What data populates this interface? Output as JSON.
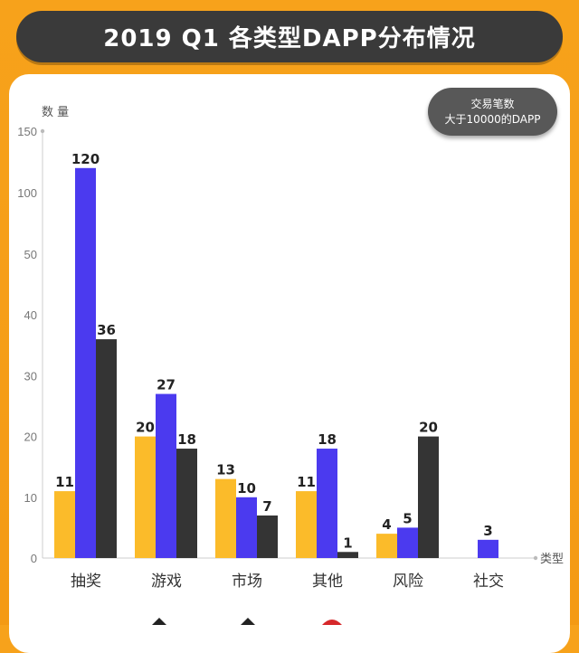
{
  "header": {
    "title": "2019 Q1 各类型DAPP分布情况"
  },
  "badge": {
    "line1": "交易笔数",
    "line2": "大于10000的DAPP"
  },
  "colors": {
    "background": "#f7a21b",
    "yellow": "#fbbb2a",
    "blue": "#4b3aef",
    "dark": "#343434",
    "axis": "#cccccc"
  },
  "chart_data": {
    "type": "bar",
    "ylabel": "数 量",
    "xlabel": "类型",
    "categories": [
      "抽奖",
      "游戏",
      "市场",
      "其他",
      "风险",
      "社交"
    ],
    "y_ticks": [
      "0",
      "10",
      "20",
      "30",
      "40",
      "50",
      "100",
      "150"
    ],
    "y_scale": "piecewise: 0-50 linear, then 50-150",
    "series": [
      {
        "color": "#fbbb2a",
        "values": [
          11,
          20,
          13,
          11,
          4,
          null
        ]
      },
      {
        "color": "#4b3aef",
        "values": [
          120,
          27,
          10,
          18,
          5,
          3
        ]
      },
      {
        "color": "#343434",
        "values": [
          36,
          18,
          7,
          1,
          20,
          null
        ]
      }
    ],
    "grid": false,
    "legend": "bottom (partially visible icons)"
  },
  "bottom_icons": [
    "caret-icon",
    "caret-icon",
    "logo-icon"
  ]
}
